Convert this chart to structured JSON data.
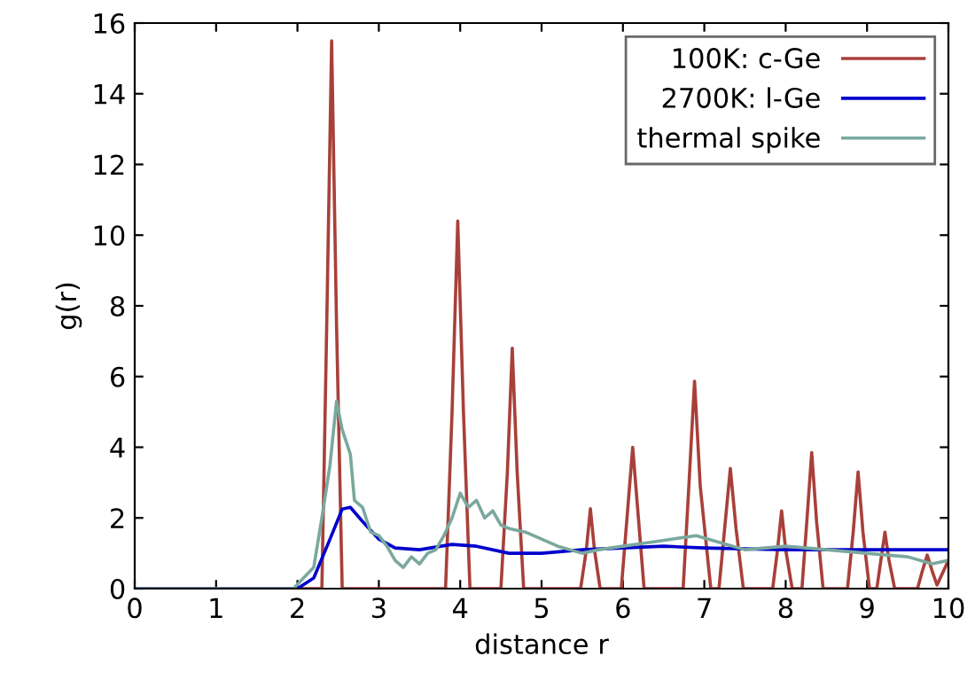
{
  "chart_data": {
    "type": "line",
    "xlabel": "distance r",
    "ylabel": "g(r)",
    "xlim": [
      0,
      10
    ],
    "xticks": [
      0,
      1,
      2,
      3,
      4,
      5,
      6,
      7,
      8,
      9,
      10
    ],
    "ylim": [
      0,
      16
    ],
    "yticks": [
      0,
      2,
      4,
      6,
      8,
      10,
      12,
      14,
      16
    ],
    "grid": false,
    "legend": "top right",
    "marker": "none",
    "line_style": "solid",
    "series": [
      {
        "name": "100K: c-Ge",
        "color": "#a8403a",
        "x": [
          0,
          2.3,
          2.36,
          2.42,
          2.48,
          2.55,
          3.82,
          3.9,
          3.97,
          4.04,
          4.12,
          4.5,
          4.58,
          4.64,
          4.7,
          4.78,
          5.48,
          5.55,
          5.6,
          5.65,
          5.72,
          5.98,
          6.05,
          6.12,
          6.19,
          6.26,
          6.74,
          6.81,
          6.88,
          6.95,
          7.08,
          7.18,
          7.25,
          7.32,
          7.39,
          7.48,
          7.84,
          7.9,
          7.95,
          8.0,
          8.08,
          8.2,
          8.26,
          8.32,
          8.38,
          8.46,
          8.76,
          8.83,
          8.89,
          8.95,
          9.03,
          9.12,
          9.17,
          9.22,
          9.27,
          9.34,
          9.62,
          9.68,
          9.74,
          9.8,
          9.86,
          10
        ],
        "values": [
          0,
          0,
          7.5,
          15.5,
          7.5,
          0,
          0,
          5.0,
          10.4,
          5.0,
          0,
          0,
          3.3,
          6.8,
          3.3,
          0,
          0,
          1.1,
          2.26,
          1.1,
          0,
          0,
          2.0,
          4.0,
          2.0,
          0,
          0,
          2.9,
          5.87,
          2.9,
          0,
          0,
          1.7,
          3.4,
          1.7,
          0,
          0,
          1.1,
          2.2,
          1.1,
          0,
          0,
          1.9,
          3.85,
          1.9,
          0,
          0,
          1.6,
          3.3,
          1.6,
          0,
          0,
          0.8,
          1.6,
          0.8,
          0,
          0,
          0.5,
          0.95,
          0.5,
          0.1,
          0.8
        ]
      },
      {
        "name": "2700K: l-Ge",
        "color": "#0000cc",
        "x": [
          0,
          2.0,
          2.2,
          2.4,
          2.55,
          2.65,
          2.8,
          3.0,
          3.2,
          3.5,
          3.9,
          4.2,
          4.6,
          5.0,
          5.5,
          6.0,
          6.5,
          7.0,
          8.0,
          9.0,
          10.0
        ],
        "values": [
          0,
          0,
          0.3,
          1.4,
          2.25,
          2.3,
          1.9,
          1.4,
          1.15,
          1.1,
          1.25,
          1.2,
          1.0,
          1.0,
          1.1,
          1.15,
          1.2,
          1.15,
          1.1,
          1.1,
          1.1
        ]
      },
      {
        "name": "thermal spike",
        "color": "#7aa89e",
        "x": [
          0,
          1.95,
          2.2,
          2.3,
          2.4,
          2.48,
          2.55,
          2.65,
          2.7,
          2.8,
          2.9,
          3.0,
          3.1,
          3.2,
          3.3,
          3.4,
          3.5,
          3.6,
          3.7,
          3.8,
          3.9,
          4.0,
          4.1,
          4.2,
          4.3,
          4.4,
          4.5,
          4.6,
          4.8,
          5.0,
          5.2,
          5.5,
          5.7,
          6.0,
          6.3,
          6.6,
          6.9,
          7.2,
          7.5,
          8.0,
          8.5,
          9.0,
          9.5,
          9.8,
          10.0
        ],
        "values": [
          0,
          0,
          0.6,
          2.0,
          3.5,
          5.3,
          4.5,
          3.8,
          2.5,
          2.3,
          1.6,
          1.5,
          1.2,
          0.8,
          0.6,
          0.9,
          0.7,
          1.0,
          1.1,
          1.5,
          2.0,
          2.7,
          2.3,
          2.5,
          2.0,
          2.2,
          1.8,
          1.7,
          1.6,
          1.4,
          1.2,
          1.0,
          1.1,
          1.2,
          1.3,
          1.4,
          1.5,
          1.3,
          1.1,
          1.2,
          1.1,
          1.0,
          0.9,
          0.7,
          0.8
        ]
      }
    ]
  }
}
